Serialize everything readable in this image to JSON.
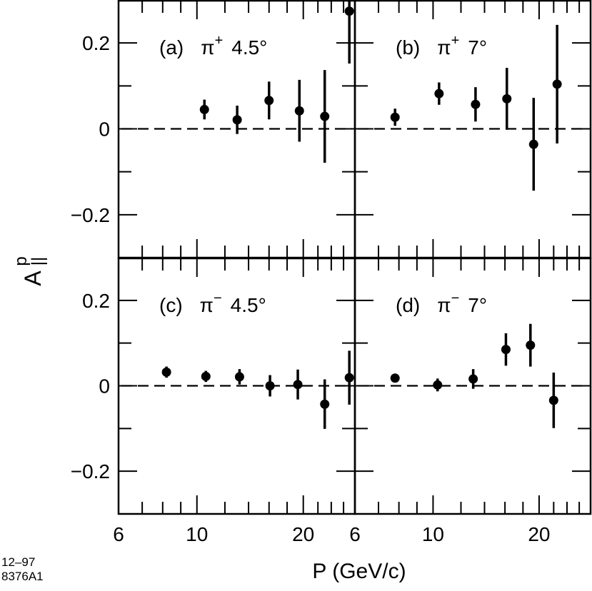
{
  "figure": {
    "ylabel_main": "A",
    "ylabel_sup": "p",
    "ylabel_sub": "||",
    "xlabel": "P  (GeV/c)",
    "footnote_line1": "12–97",
    "footnote_line2": "8376A1"
  },
  "chart_data": [
    {
      "type": "scatter",
      "panel": "a",
      "title": "(a)  π⁺ 4.5°",
      "label_id": "(a)",
      "label_particle": "π",
      "label_charge": "+",
      "label_angle": "4.5°",
      "xscale": "log",
      "xlim": [
        6,
        28
      ],
      "ylim": [
        -0.3,
        0.3
      ],
      "x_ticks": [
        6,
        10,
        20
      ],
      "x_tick_labels": [
        "6",
        "10",
        "20"
      ],
      "y_ticks": [
        -0.2,
        0,
        0.2
      ],
      "y_tick_labels": [
        "−0.2",
        "0",
        "0.2"
      ],
      "zero_line": "dashed",
      "points": [
        {
          "x": 10.5,
          "y": 0.045,
          "err": 0.023
        },
        {
          "x": 13.0,
          "y": 0.021,
          "err": 0.033
        },
        {
          "x": 16.0,
          "y": 0.066,
          "err": 0.044
        },
        {
          "x": 19.5,
          "y": 0.042,
          "err": 0.072
        },
        {
          "x": 23.0,
          "y": 0.029,
          "err": 0.108
        },
        {
          "x": 27.0,
          "y": 0.274,
          "err": 0.122
        }
      ]
    },
    {
      "type": "scatter",
      "panel": "b",
      "title": "(b)  π⁺  7°",
      "label_id": "(b)",
      "label_particle": "π",
      "label_charge": "+",
      "label_angle": "7°",
      "xscale": "log",
      "xlim": [
        6,
        28
      ],
      "ylim": [
        -0.3,
        0.3
      ],
      "x_ticks": [
        6,
        10,
        20
      ],
      "x_tick_labels": [
        "6",
        "10",
        "20"
      ],
      "zero_line": "dashed",
      "points": [
        {
          "x": 7.8,
          "y": 0.027,
          "err": 0.02
        },
        {
          "x": 10.4,
          "y": 0.082,
          "err": 0.026
        },
        {
          "x": 13.2,
          "y": 0.057,
          "err": 0.04
        },
        {
          "x": 16.2,
          "y": 0.07,
          "err": 0.072
        },
        {
          "x": 19.3,
          "y": -0.036,
          "err": 0.108
        },
        {
          "x": 22.5,
          "y": 0.104,
          "err": 0.138
        }
      ]
    },
    {
      "type": "scatter",
      "panel": "c",
      "title": "(c)  π⁻  4.5°",
      "label_id": "(c)",
      "label_particle": "π",
      "label_charge": "−",
      "label_angle": "4.5°",
      "xscale": "log",
      "xlim": [
        6,
        28
      ],
      "ylim": [
        -0.3,
        0.3
      ],
      "x_ticks": [
        6,
        10,
        20
      ],
      "x_tick_labels": [
        "6",
        "10",
        "20"
      ],
      "y_ticks": [
        -0.2,
        0,
        0.2
      ],
      "y_tick_labels": [
        "−0.2",
        "0",
        "0.2"
      ],
      "zero_line": "dashed",
      "points": [
        {
          "x": 8.2,
          "y": 0.032,
          "err": 0.013
        },
        {
          "x": 10.6,
          "y": 0.022,
          "err": 0.013
        },
        {
          "x": 13.2,
          "y": 0.021,
          "err": 0.018
        },
        {
          "x": 16.1,
          "y": 0.0,
          "err": 0.025
        },
        {
          "x": 19.3,
          "y": 0.003,
          "err": 0.035
        },
        {
          "x": 23.0,
          "y": -0.043,
          "err": 0.058
        },
        {
          "x": 27.0,
          "y": 0.019,
          "err": 0.063
        }
      ]
    },
    {
      "type": "scatter",
      "panel": "d",
      "title": "(d)  π⁻  7°",
      "label_id": "(d)",
      "label_particle": "π",
      "label_charge": "−",
      "label_angle": "7°",
      "xscale": "log",
      "xlim": [
        6,
        28
      ],
      "ylim": [
        -0.3,
        0.3
      ],
      "x_ticks": [
        6,
        10,
        20
      ],
      "x_tick_labels": [
        "6",
        "10",
        "20"
      ],
      "zero_line": "dashed",
      "points": [
        {
          "x": 7.8,
          "y": 0.018,
          "err": 0.008
        },
        {
          "x": 10.3,
          "y": 0.002,
          "err": 0.015
        },
        {
          "x": 13.0,
          "y": 0.016,
          "err": 0.023
        },
        {
          "x": 16.1,
          "y": 0.085,
          "err": 0.038
        },
        {
          "x": 18.9,
          "y": 0.095,
          "err": 0.05
        },
        {
          "x": 22.0,
          "y": -0.034,
          "err": 0.065
        }
      ]
    }
  ]
}
